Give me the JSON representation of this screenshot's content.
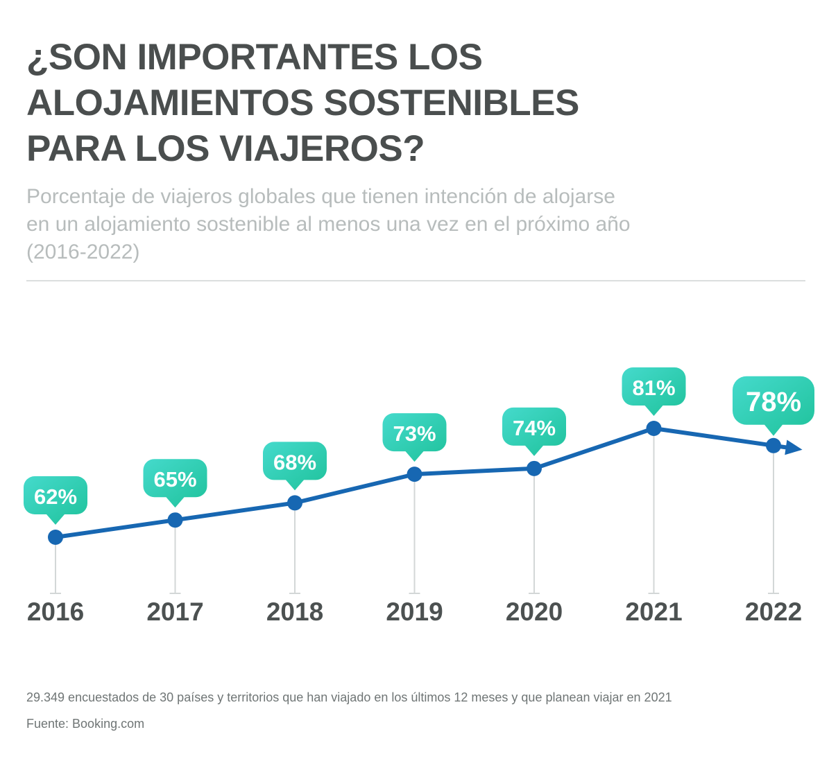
{
  "header": {
    "title_lines": [
      "¿SON IMPORTANTES LOS",
      "ALOJAMIENTOS SOSTENIBLES",
      "PARA LOS VIAJEROS?"
    ],
    "subtitle_lines": [
      "Porcentaje de viajeros globales que tienen intención de alojarse",
      "en un alojamiento sostenible al menos una vez en el próximo año",
      "(2016-2022)"
    ]
  },
  "footer": {
    "note": "29.349 encuestados de 30 países y territorios que han viajado en los últimos 12 meses y que planean viajar en 2021",
    "source": "Fuente: Booking.com"
  },
  "chart_data": {
    "type": "line",
    "title": "¿Son importantes los alojamientos sostenibles para los viajeros?",
    "categories": [
      "2016",
      "2017",
      "2018",
      "2019",
      "2020",
      "2021",
      "2022"
    ],
    "values": [
      62,
      65,
      68,
      73,
      74,
      81,
      78
    ],
    "labels": [
      "62%",
      "65%",
      "68%",
      "73%",
      "74%",
      "81%",
      "78%"
    ],
    "xlabel": "",
    "ylabel": "",
    "ylim": [
      60,
      84
    ],
    "grid": false,
    "legend": "none",
    "emphasized_point": "2022",
    "annotations": "arrow continuing the trend after the 2022 data point",
    "colors": {
      "line": "#1767B2",
      "marker": "#1767B2",
      "bubble_gradient_start": "#45DACC",
      "bubble_gradient_end": "#1FC29B",
      "bubble_text": "#FFFFFF",
      "year_label": "#4C5151",
      "stem": "#D3D7D7"
    }
  }
}
